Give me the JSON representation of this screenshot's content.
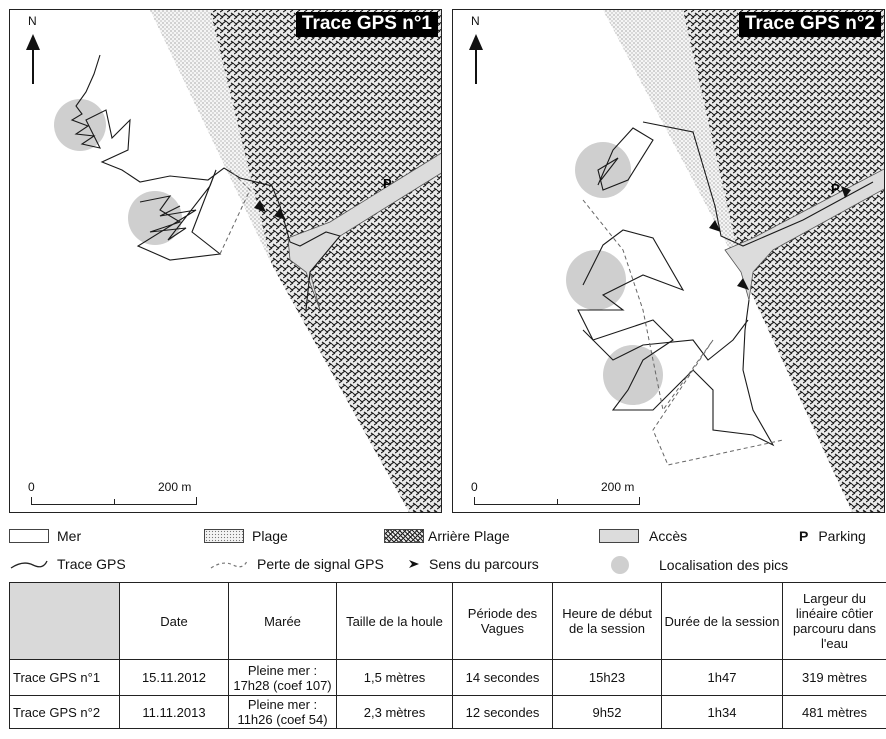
{
  "maps": [
    {
      "title": "Trace GPS n°1",
      "north": "N",
      "scale_zero": "0",
      "scale_dist": "200 m",
      "parking": "P"
    },
    {
      "title": "Trace GPS n°2",
      "north": "N",
      "scale_zero": "0",
      "scale_dist": "200 m",
      "parking": "P"
    }
  ],
  "legend": {
    "mer": "Mer",
    "plage": "Plage",
    "arriere_plage": "Arrière Plage",
    "acces": "Accès",
    "parking_symbol": "P",
    "parking": "Parking",
    "trace": "Trace GPS",
    "perte": "Perte de signal GPS",
    "sens": "Sens du parcours",
    "pics": "Localisation des pics"
  },
  "table": {
    "headers": [
      "",
      "Date",
      "Marée",
      "Taille de la houle",
      "Période des Vagues",
      "Heure de début de la session",
      "Durée de la session",
      "Largeur du linéaire côtier parcouru dans l'eau"
    ],
    "rows": [
      [
        "Trace GPS n°1",
        "15.11.2012",
        "Pleine mer : 17h28 (coef 107)",
        "1,5 mètres",
        "14 secondes",
        "15h23",
        "1h47",
        "319 mètres"
      ],
      [
        "Trace GPS n°2",
        "11.11.2013",
        "Pleine mer : 11h26 (coef 54)",
        "2,3 mètres",
        "12 secondes",
        "9h52",
        "1h34",
        "481 mètres"
      ]
    ]
  }
}
